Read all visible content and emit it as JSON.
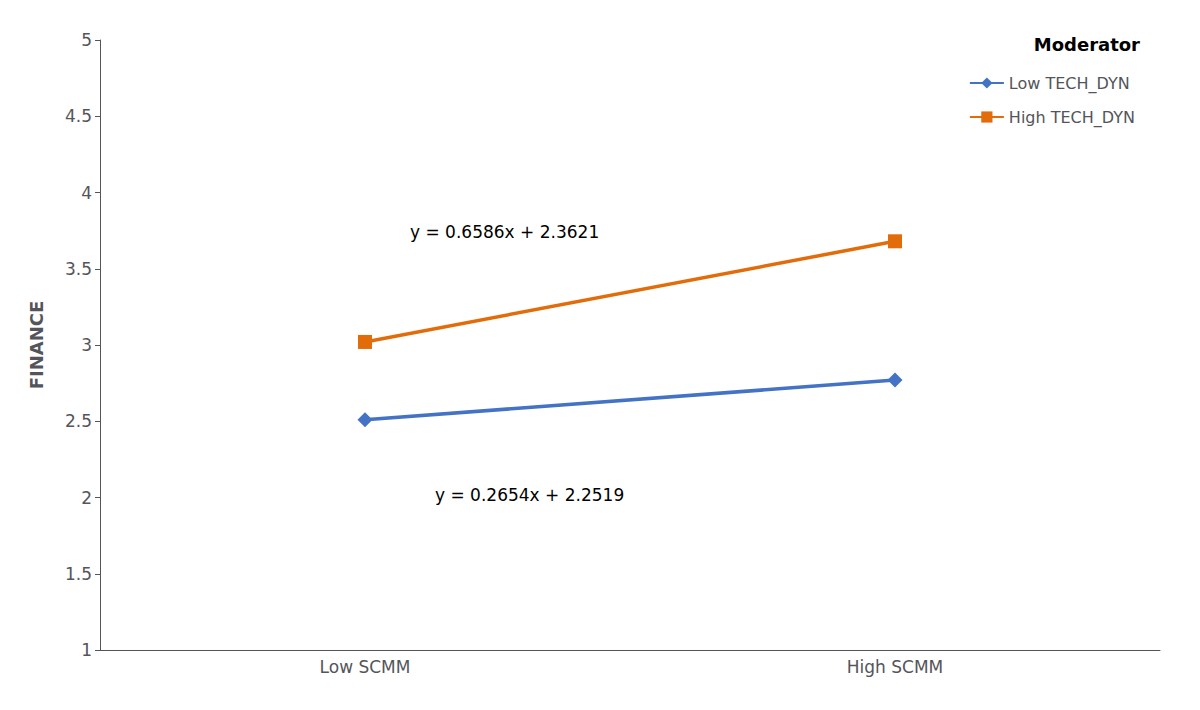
{
  "chart_data": {
    "type": "line",
    "categories": [
      "Low SCMM",
      "High SCMM"
    ],
    "series": [
      {
        "name": "Low TECH_DYN",
        "color": "#4472C4",
        "marker": "diamond",
        "values": [
          2.51,
          2.77
        ],
        "annotation": "y = 0.2654x + 2.2519"
      },
      {
        "name": "High TECH_DYN",
        "color": "#E36C0A",
        "marker": "square",
        "values": [
          3.02,
          3.68
        ],
        "annotation": "y = 0.6586x + 2.3621"
      }
    ],
    "ylabel": "FINANCE",
    "legend_title": "Moderator",
    "legend": "upper right",
    "ylim": [
      1.0,
      5.0
    ],
    "yticks": [
      1,
      1.5,
      2,
      2.5,
      3,
      3.5,
      4,
      4.5,
      5
    ],
    "grid": false
  }
}
